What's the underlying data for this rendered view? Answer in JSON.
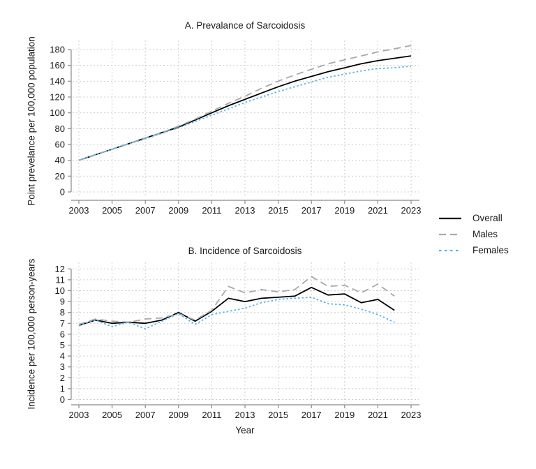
{
  "legend": {
    "items": [
      {
        "label": "Overall",
        "color": "#000000",
        "style": "solid"
      },
      {
        "label": "Males",
        "color": "#a8a8a8",
        "style": "dashed"
      },
      {
        "label": "Females",
        "color": "#56b4e9",
        "style": "dotted"
      }
    ]
  },
  "colors": {
    "overall": "#000000",
    "males": "#a8a8a8",
    "females": "#56b4e9",
    "grid": "#cccccc",
    "axis": "#8a8a8a",
    "tick_text": "#1a1a1a"
  },
  "chart_data": [
    {
      "id": "prevalence",
      "type": "line",
      "title": "A. Prevalance of Sarcoidosis",
      "xlabel": "",
      "ylabel": "Point prevelance per 100,000 population",
      "x": [
        2003,
        2004,
        2005,
        2006,
        2007,
        2008,
        2009,
        2010,
        2011,
        2012,
        2013,
        2014,
        2015,
        2016,
        2017,
        2018,
        2019,
        2020,
        2021,
        2022,
        2023
      ],
      "x_tick_labels": [
        2003,
        2005,
        2007,
        2009,
        2011,
        2013,
        2015,
        2017,
        2019,
        2021,
        2023
      ],
      "ylim": [
        0,
        180
      ],
      "y_ticks": [
        0,
        20,
        40,
        60,
        80,
        100,
        120,
        140,
        160,
        180
      ],
      "grid": true,
      "legend_position": "right",
      "series": [
        {
          "name": "Overall",
          "color": "#000000",
          "style": "solid",
          "values": [
            40,
            47,
            54,
            61,
            68,
            75,
            82,
            91,
            100,
            109,
            117,
            125,
            133,
            140,
            146,
            152,
            157,
            162,
            166,
            169,
            172
          ]
        },
        {
          "name": "Males",
          "color": "#a8a8a8",
          "style": "dashed",
          "values": [
            40,
            47,
            54,
            61,
            68,
            75,
            83,
            92,
            102,
            112,
            121,
            131,
            140,
            148,
            155,
            162,
            167,
            172,
            177,
            181,
            185
          ]
        },
        {
          "name": "Females",
          "color": "#56b4e9",
          "style": "dotted",
          "values": [
            40,
            47,
            54,
            61,
            67,
            74,
            81,
            89,
            97,
            105,
            113,
            120,
            127,
            133,
            139,
            145,
            149,
            153,
            156,
            157,
            159
          ]
        }
      ]
    },
    {
      "id": "incidence",
      "type": "line",
      "title": "B. Incidence of Sarcoidosis",
      "xlabel": "Year",
      "ylabel": "Incidence per 100,000 person-years",
      "x": [
        2003,
        2004,
        2005,
        2006,
        2007,
        2008,
        2009,
        2010,
        2011,
        2012,
        2013,
        2014,
        2015,
        2016,
        2017,
        2018,
        2019,
        2020,
        2021,
        2022
      ],
      "x_tick_labels": [
        2003,
        2005,
        2007,
        2009,
        2011,
        2013,
        2015,
        2017,
        2019,
        2021,
        2023
      ],
      "ylim": [
        0,
        12
      ],
      "y_ticks": [
        0,
        1,
        2,
        3,
        4,
        5,
        6,
        7,
        8,
        9,
        10,
        11,
        12
      ],
      "grid": true,
      "legend_position": "right",
      "series": [
        {
          "name": "Overall",
          "color": "#000000",
          "style": "solid",
          "values": [
            6.8,
            7.3,
            7.0,
            7.1,
            7.0,
            7.3,
            8.0,
            7.2,
            8.1,
            9.3,
            9.0,
            9.3,
            9.4,
            9.5,
            10.3,
            9.6,
            9.7,
            8.9,
            9.2,
            8.2
          ]
        },
        {
          "name": "Males",
          "color": "#a8a8a8",
          "style": "dashed",
          "values": [
            6.9,
            7.4,
            7.2,
            7.1,
            7.4,
            7.5,
            7.9,
            7.3,
            8.2,
            10.4,
            9.8,
            10.1,
            9.9,
            10.1,
            11.3,
            10.4,
            10.5,
            9.8,
            10.6,
            9.5
          ]
        },
        {
          "name": "Females",
          "color": "#56b4e9",
          "style": "dotted",
          "values": [
            6.8,
            7.3,
            6.7,
            7.1,
            6.5,
            7.2,
            7.9,
            6.9,
            7.8,
            8.1,
            8.4,
            8.9,
            9.2,
            9.3,
            9.4,
            8.8,
            8.7,
            8.3,
            7.8,
            7.1
          ]
        }
      ]
    }
  ]
}
